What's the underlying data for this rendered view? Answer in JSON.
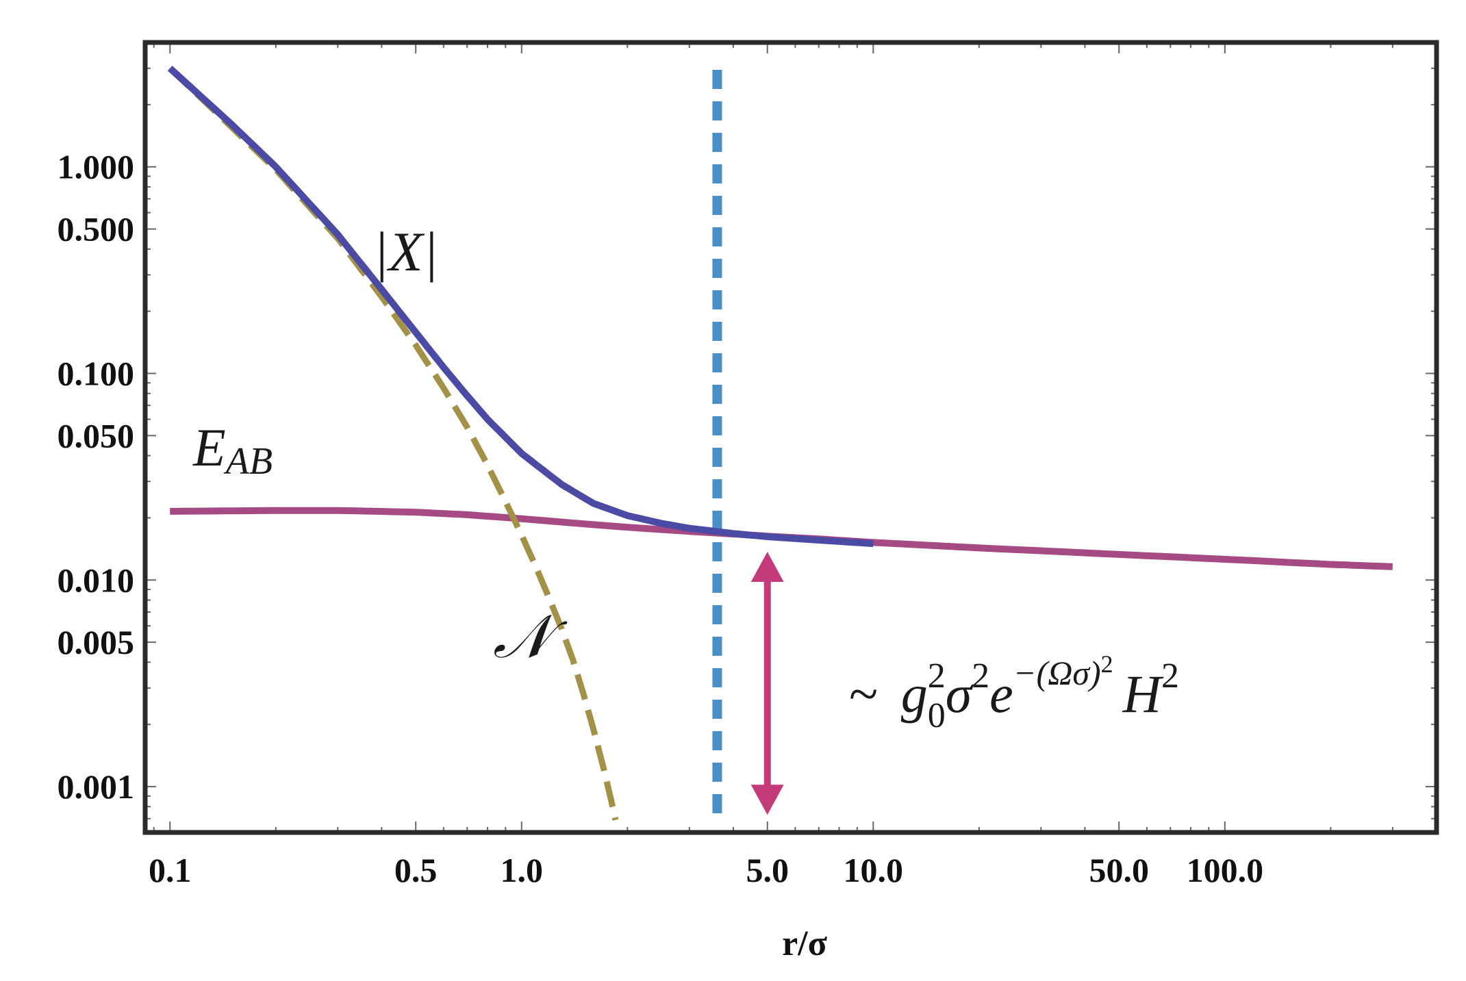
{
  "chart_data": {
    "type": "line",
    "xscale": "log",
    "yscale": "log",
    "xlim": [
      0.085,
      400
    ],
    "ylim": [
      0.0006,
      4.0
    ],
    "xlabel": "r/σ",
    "ylabel": "",
    "x_ticks": [
      {
        "value": 0.1,
        "label": "0.1"
      },
      {
        "value": 0.5,
        "label": "0.5"
      },
      {
        "value": 1.0,
        "label": "1.0"
      },
      {
        "value": 5.0,
        "label": "5.0"
      },
      {
        "value": 10.0,
        "label": "10.0"
      },
      {
        "value": 50.0,
        "label": "50.0"
      },
      {
        "value": 100.0,
        "label": "100.0"
      }
    ],
    "y_ticks": [
      {
        "value": 1.0,
        "label": "1.000"
      },
      {
        "value": 0.5,
        "label": "0.500"
      },
      {
        "value": 0.1,
        "label": "0.100"
      },
      {
        "value": 0.05,
        "label": "0.050"
      },
      {
        "value": 0.01,
        "label": "0.010"
      },
      {
        "value": 0.005,
        "label": "0.005"
      },
      {
        "value": 0.001,
        "label": "0.001"
      }
    ],
    "grid": false,
    "series": [
      {
        "name": "|X|",
        "color": "#4b4aa4",
        "style": "solid",
        "points": [
          [
            0.1,
            3.0
          ],
          [
            0.15,
            1.6
          ],
          [
            0.2,
            1.0
          ],
          [
            0.3,
            0.47
          ],
          [
            0.4,
            0.255
          ],
          [
            0.5,
            0.158
          ],
          [
            0.6,
            0.107
          ],
          [
            0.7,
            0.078
          ],
          [
            0.8,
            0.06
          ],
          [
            1.0,
            0.041
          ],
          [
            1.3,
            0.029
          ],
          [
            1.6,
            0.0235
          ],
          [
            2.0,
            0.0205
          ],
          [
            2.5,
            0.0188
          ],
          [
            3.0,
            0.0178
          ],
          [
            4.0,
            0.0168
          ],
          [
            5.0,
            0.0162
          ],
          [
            7.0,
            0.0156
          ],
          [
            10.0,
            0.015
          ]
        ]
      },
      {
        "name": "E_AB",
        "color": "#a54a83",
        "style": "solid",
        "points": [
          [
            0.1,
            0.0215
          ],
          [
            0.2,
            0.0217
          ],
          [
            0.3,
            0.0217
          ],
          [
            0.5,
            0.0213
          ],
          [
            0.7,
            0.0207
          ],
          [
            1.0,
            0.0198
          ],
          [
            1.5,
            0.0187
          ],
          [
            2.0,
            0.018
          ],
          [
            3.0,
            0.0172
          ],
          [
            4.0,
            0.0167
          ],
          [
            5.0,
            0.0163
          ],
          [
            7.0,
            0.0158
          ],
          [
            10.0,
            0.0152
          ],
          [
            20.0,
            0.0143
          ],
          [
            50.0,
            0.0133
          ],
          [
            100.0,
            0.0126
          ],
          [
            200.0,
            0.0119
          ],
          [
            300.0,
            0.0116
          ]
        ]
      },
      {
        "name": "𝒩",
        "color": "#a39148",
        "style": "dashed",
        "points": [
          [
            0.1,
            3.0
          ],
          [
            0.15,
            1.55
          ],
          [
            0.2,
            0.97
          ],
          [
            0.3,
            0.45
          ],
          [
            0.4,
            0.235
          ],
          [
            0.5,
            0.137
          ],
          [
            0.6,
            0.085
          ],
          [
            0.7,
            0.055
          ],
          [
            0.8,
            0.036
          ],
          [
            0.9,
            0.024
          ],
          [
            1.0,
            0.0165
          ],
          [
            1.1,
            0.0115
          ],
          [
            1.2,
            0.0081
          ],
          [
            1.3,
            0.0058
          ],
          [
            1.4,
            0.0041
          ],
          [
            1.5,
            0.0028
          ],
          [
            1.6,
            0.0019
          ],
          [
            1.7,
            0.00128
          ],
          [
            1.8,
            0.00085
          ],
          [
            1.85,
            0.00069
          ]
        ]
      }
    ],
    "reference_line": {
      "x": 3.6,
      "color": "#4b8ec8",
      "style": "dotted"
    },
    "arrow": {
      "x": 5.0,
      "y_from": 0.0137,
      "y_to": 0.00073,
      "color": "#c43b7c",
      "double_headed": true
    },
    "annotations": [
      {
        "name": "abs-x",
        "text": "|X|",
        "x": 0.34,
        "y": 0.3
      },
      {
        "name": "eab",
        "text": "E",
        "sub": "AB",
        "x": 0.135,
        "y": 0.032
      },
      {
        "name": "negativity",
        "text": "𝒩",
        "x": 0.42,
        "y": 0.0036
      },
      {
        "name": "scaling",
        "text": "~ g₀²σ²e^−(Ωσ)² H²",
        "x": 8.5,
        "y": 0.0025
      }
    ]
  },
  "labels": {
    "abs_x": "|X|",
    "eab_main": "E",
    "eab_sub": "AB",
    "negativity": "𝒩",
    "scaling_prefix": "~",
    "scaling_g": "g",
    "scaling_g_sup": "2",
    "scaling_g_sub": "0",
    "scaling_sigma": "σ",
    "scaling_sigma_sup": "2",
    "scaling_e": "e",
    "scaling_e_sup": "−(Ωσ)",
    "scaling_e_sup_sup": "2",
    "scaling_h": "H",
    "scaling_h_sup": "2"
  }
}
